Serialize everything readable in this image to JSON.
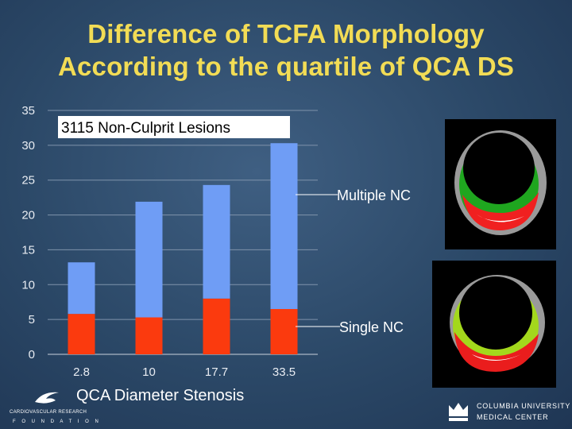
{
  "title": {
    "line1": "Difference of TCFA Morphology",
    "line2": "According to the quartile of QCA DS"
  },
  "chart_data": {
    "type": "bar",
    "stacked": true,
    "categories": [
      "2.8",
      "10",
      "17.7",
      "33.5"
    ],
    "series": [
      {
        "name": "Single NC",
        "values": [
          5.8,
          5.3,
          8.0,
          6.5
        ],
        "color": "#fb3a0e"
      },
      {
        "name": "Multiple NC",
        "values": [
          7.4,
          16.6,
          16.3,
          23.8
        ],
        "color": "#6f9df5"
      }
    ],
    "ylim": [
      0,
      35
    ],
    "yticks": [
      0,
      5,
      10,
      15,
      20,
      25,
      30,
      35
    ],
    "grid": true,
    "annotation": "3115 Non-Culprit Lesions",
    "xlabel": "QCA Diameter Stenosis",
    "ylabel": ""
  },
  "callouts": {
    "multiple": "Multiple NC",
    "single": "Single NC"
  },
  "logos": {
    "left_line1": "CARDIOVASCULAR RESEARCH",
    "left_line2": "F O U N D A T I O N",
    "right_line1": "COLUMBIA UNIVERSITY",
    "right_line2": "MEDICAL CENTER"
  },
  "colors": {
    "title": "#f2dc55",
    "background": "#2b4867",
    "single_nc": "#fb3a0e",
    "multiple_nc": "#6f9df5"
  }
}
